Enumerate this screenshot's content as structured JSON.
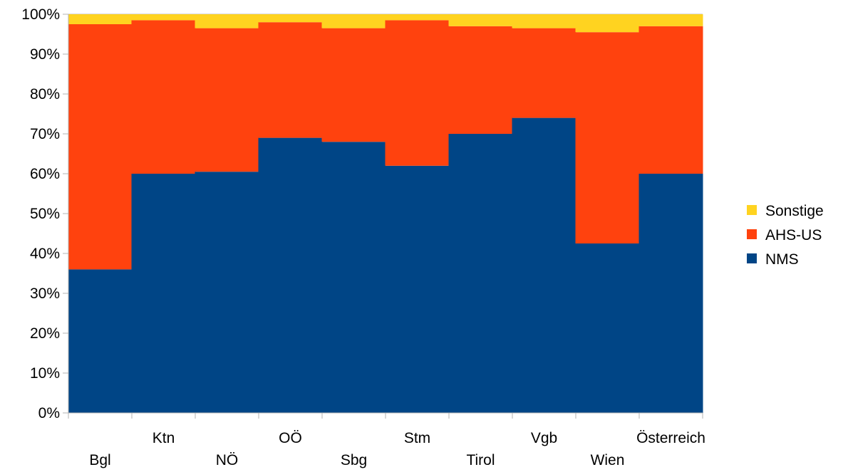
{
  "chart_data": {
    "type": "bar",
    "stacked": true,
    "normalized_percent": true,
    "categories": [
      "Bgl",
      "Ktn",
      "NÖ",
      "OÖ",
      "Sbg",
      "Stm",
      "Tirol",
      "Vgb",
      "Wien",
      "Österreich"
    ],
    "series": [
      {
        "name": "NMS",
        "color": "#004586",
        "values": [
          36,
          60,
          60.5,
          69,
          68,
          62,
          70,
          74,
          42.5,
          60
        ]
      },
      {
        "name": "AHS-US",
        "color": "#ff420e",
        "values": [
          61.5,
          38.5,
          36,
          29,
          28.5,
          36.5,
          27,
          22.5,
          53,
          37
        ]
      },
      {
        "name": "Sonstige",
        "color": "#ffd320",
        "values": [
          2.5,
          1.5,
          3.5,
          2,
          3.5,
          1.5,
          3,
          3.5,
          4.5,
          3
        ]
      }
    ],
    "ylim": [
      0,
      100
    ],
    "yticks": [
      "0%",
      "10%",
      "20%",
      "30%",
      "40%",
      "50%",
      "60%",
      "70%",
      "80%",
      "90%",
      "100%"
    ],
    "grid": true,
    "legend_position": "right",
    "legend_order": [
      "Sonstige",
      "AHS-US",
      "NMS"
    ],
    "title": "",
    "xlabel": "",
    "ylabel": ""
  }
}
